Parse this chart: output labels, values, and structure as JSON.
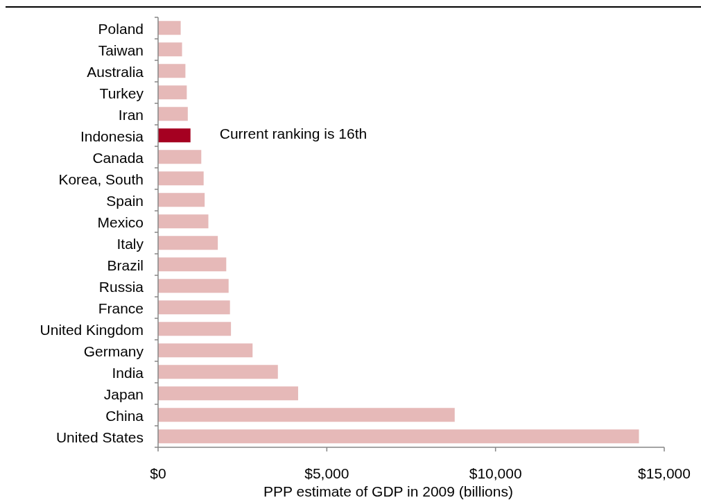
{
  "chart_data": {
    "type": "bar",
    "orientation": "horizontal",
    "xlabel": "PPP estimate of GDP in 2009 (billions)",
    "categories": [
      "Poland",
      "Taiwan",
      "Australia",
      "Turkey",
      "Iran",
      "Indonesia",
      "Canada",
      "Korea, South",
      "Spain",
      "Mexico",
      "Italy",
      "Brazil",
      "Russia",
      "France",
      "United Kingdom",
      "Germany",
      "India",
      "Japan",
      "China",
      "United States"
    ],
    "values": [
      670,
      710,
      810,
      850,
      880,
      960,
      1280,
      1350,
      1380,
      1490,
      1770,
      2020,
      2090,
      2130,
      2160,
      2800,
      3550,
      4150,
      8790,
      14250
    ],
    "colors": [
      "#e6b9b8",
      "#e6b9b8",
      "#e6b9b8",
      "#e6b9b8",
      "#e6b9b8",
      "#a50021",
      "#e6b9b8",
      "#e6b9b8",
      "#e6b9b8",
      "#e6b9b8",
      "#e6b9b8",
      "#e6b9b8",
      "#e6b9b8",
      "#e6b9b8",
      "#e6b9b8",
      "#e6b9b8",
      "#e6b9b8",
      "#e6b9b8",
      "#e6b9b8",
      "#e6b9b8"
    ],
    "xlim": [
      0,
      15000
    ],
    "xticks": [
      {
        "value": 0,
        "label": "$0"
      },
      {
        "value": 5000,
        "label": "$5,000"
      },
      {
        "value": 10000,
        "label": "$10,000"
      },
      {
        "value": 15000,
        "label": "$15,000"
      }
    ],
    "annotations": [
      {
        "text": "Current ranking is 16th",
        "x": 960,
        "y": "Indonesia"
      }
    ]
  }
}
